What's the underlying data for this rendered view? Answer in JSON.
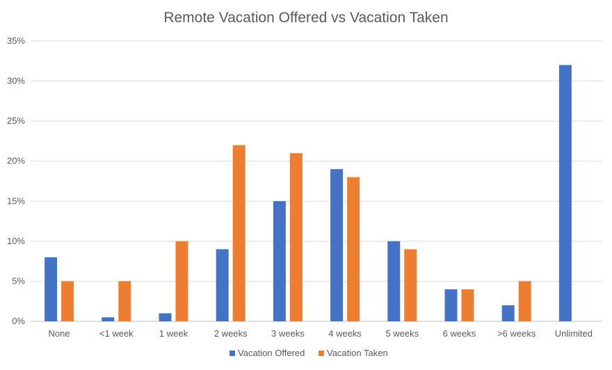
{
  "chart_data": {
    "type": "bar",
    "title": "Remote Vacation Offered vs Vacation Taken",
    "xlabel": "",
    "ylabel": "",
    "categories": [
      "None",
      "<1 week",
      "1 week",
      "2 weeks",
      "3 weeks",
      "4 weeks",
      "5 weeks",
      "6 weeks",
      ">6 weeks",
      "Unlimited"
    ],
    "series": [
      {
        "name": "Vacation Offered",
        "color": "#4472c4",
        "values": [
          8,
          0.5,
          1,
          9,
          15,
          19,
          10,
          4,
          2,
          32
        ]
      },
      {
        "name": "Vacation Taken",
        "color": "#ed7d31",
        "values": [
          5,
          5,
          10,
          22,
          21,
          18,
          9,
          4,
          5,
          0
        ]
      }
    ],
    "ylim": [
      0,
      35
    ],
    "yticks": [
      0,
      5,
      10,
      15,
      20,
      25,
      30,
      35
    ],
    "ytick_labels": [
      "0%",
      "5%",
      "10%",
      "15%",
      "20%",
      "25%",
      "30%",
      "35%"
    ],
    "grid": true,
    "legend_position": "bottom"
  }
}
